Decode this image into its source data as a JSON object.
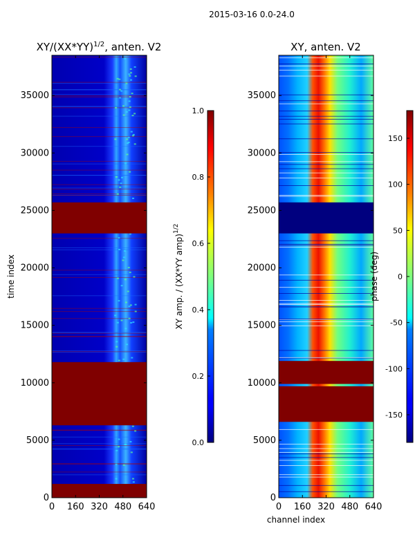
{
  "chart_data": [
    {
      "type": "heatmap",
      "suptitle": "2015-03-16 0.0-24.0",
      "title": "XY/(XX*YY)",
      "title_exponent": "1/2",
      "title_suffix": ", anten. V2",
      "xlabel": "",
      "ylabel": "time index",
      "xlim": [
        0,
        640
      ],
      "ylim": [
        0,
        38500
      ],
      "xticks": [
        0,
        160,
        320,
        480,
        640
      ],
      "yticks": [
        0,
        5000,
        10000,
        15000,
        20000,
        25000,
        30000,
        35000
      ],
      "flagged_rows": [
        [
          0,
          1200
        ],
        [
          6300,
          11800
        ],
        [
          23000,
          25700
        ]
      ],
      "flag_color": "#800000",
      "background_color": "#00007f",
      "colorbar": {
        "label": "XY amp. / (XX*YY amp)",
        "label_exponent": "1/2",
        "range": [
          0.0,
          1.0
        ],
        "ticks": [
          "0.0",
          "0.2",
          "0.4",
          "0.6",
          "0.8",
          "1.0"
        ],
        "colormap": "jet"
      }
    },
    {
      "type": "heatmap",
      "title": "XY, anten. V2",
      "xlabel": "channel index",
      "ylabel": "",
      "xlim": [
        0,
        640
      ],
      "ylim": [
        0,
        38500
      ],
      "xticks": [
        0,
        160,
        320,
        480,
        640
      ],
      "yticks": [
        0,
        5000,
        10000,
        15000,
        20000,
        25000,
        30000,
        35000
      ],
      "flagged_rows": [
        [
          6600,
          9700
        ],
        [
          9900,
          11900
        ],
        [
          23000,
          25700
        ]
      ],
      "flag_colors": {
        "6600": "#800000",
        "9900": "#800000",
        "23000": "#00007f"
      },
      "colorbar": {
        "label": "phase (deg)",
        "range": [
          -180,
          180
        ],
        "ticks": [
          "-150",
          "-100",
          "-50",
          "0",
          "50",
          "100",
          "150"
        ],
        "colormap": "jet"
      }
    }
  ]
}
